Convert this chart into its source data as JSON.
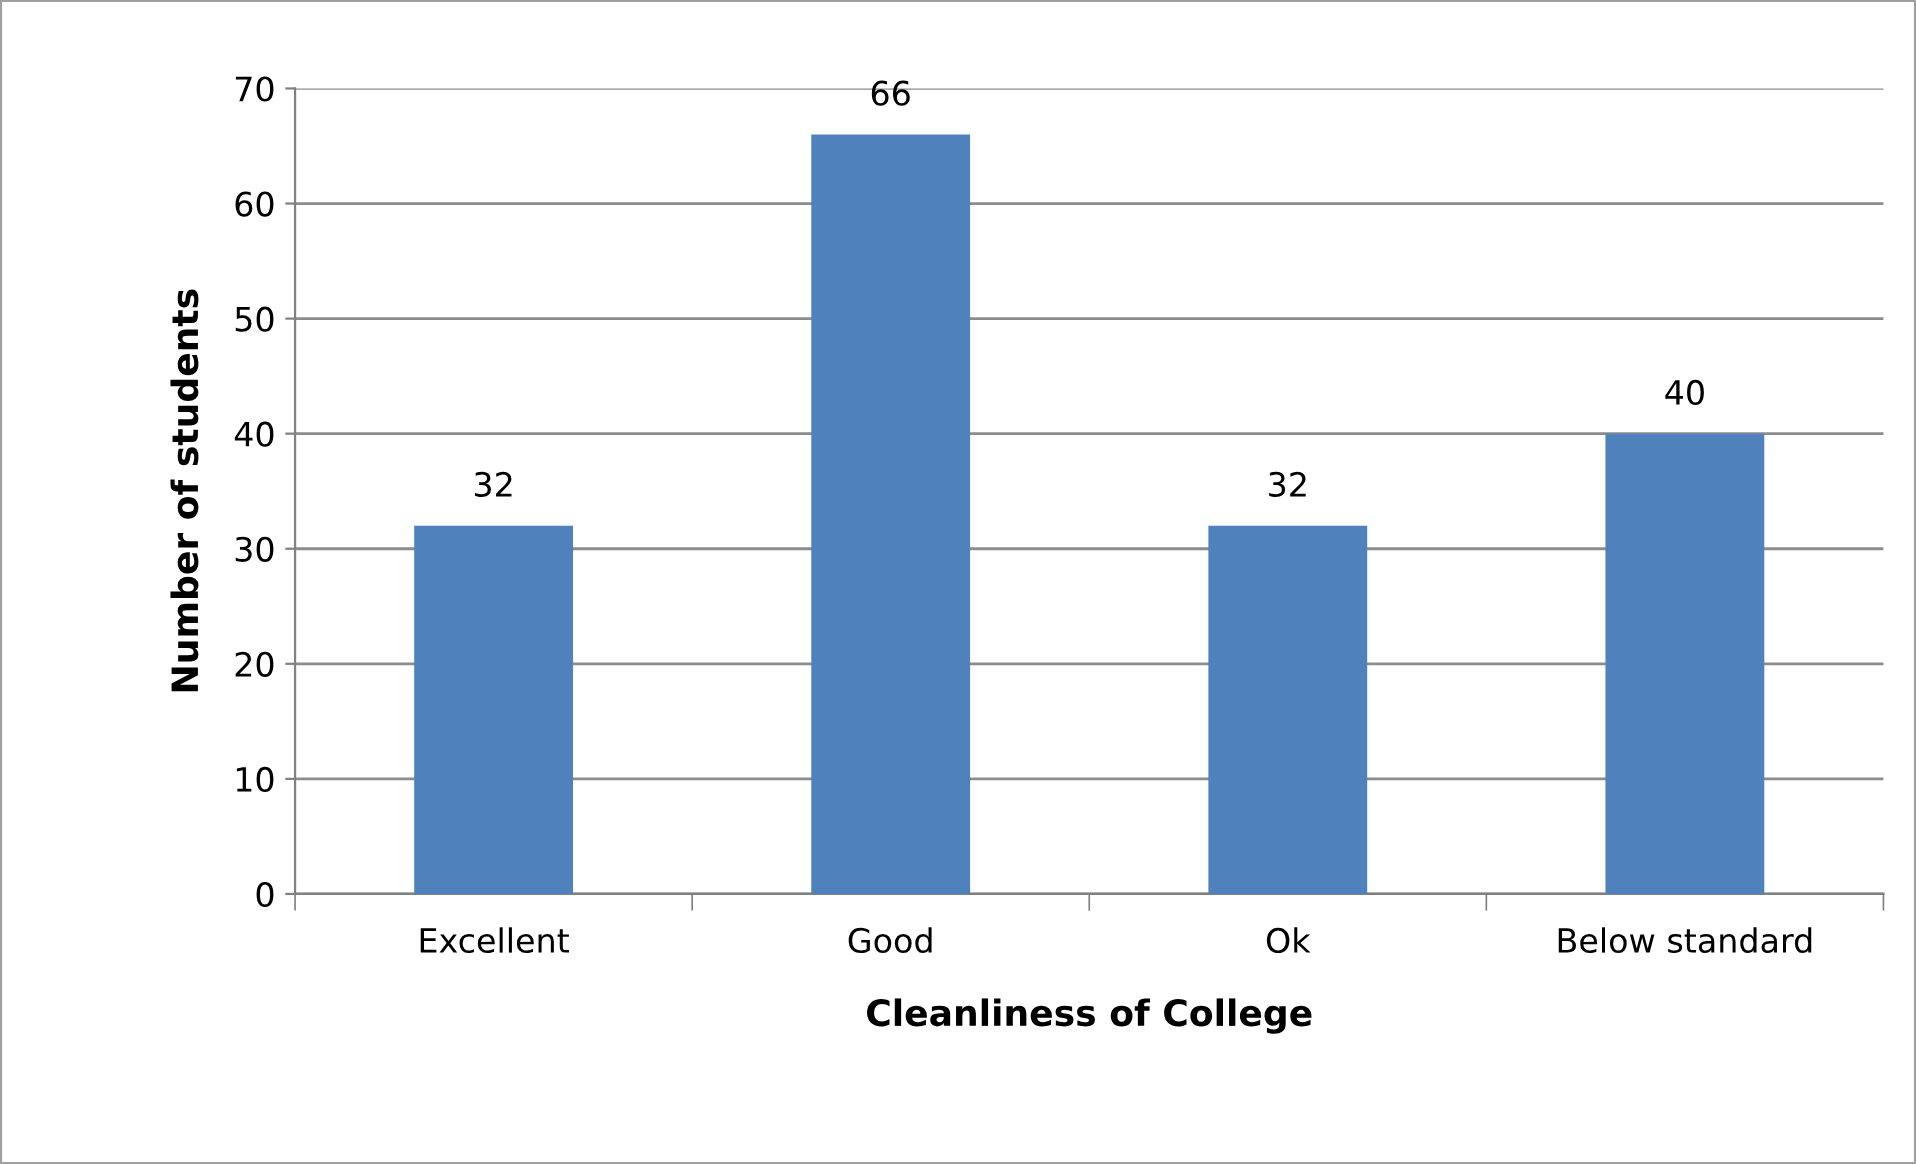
{
  "chart_data": {
    "type": "bar",
    "xlabel": "Cleanliness of College",
    "ylabel": "Number of students",
    "categories": [
      "Excellent",
      "Good",
      "Ok",
      "Below standard"
    ],
    "values": [
      32,
      66,
      32,
      40
    ],
    "color": "#4f81bd",
    "ylim": [
      0,
      70
    ],
    "yticks": [
      0,
      10,
      20,
      30,
      40,
      50,
      60,
      70
    ],
    "grid": "y",
    "data_labels": true
  }
}
